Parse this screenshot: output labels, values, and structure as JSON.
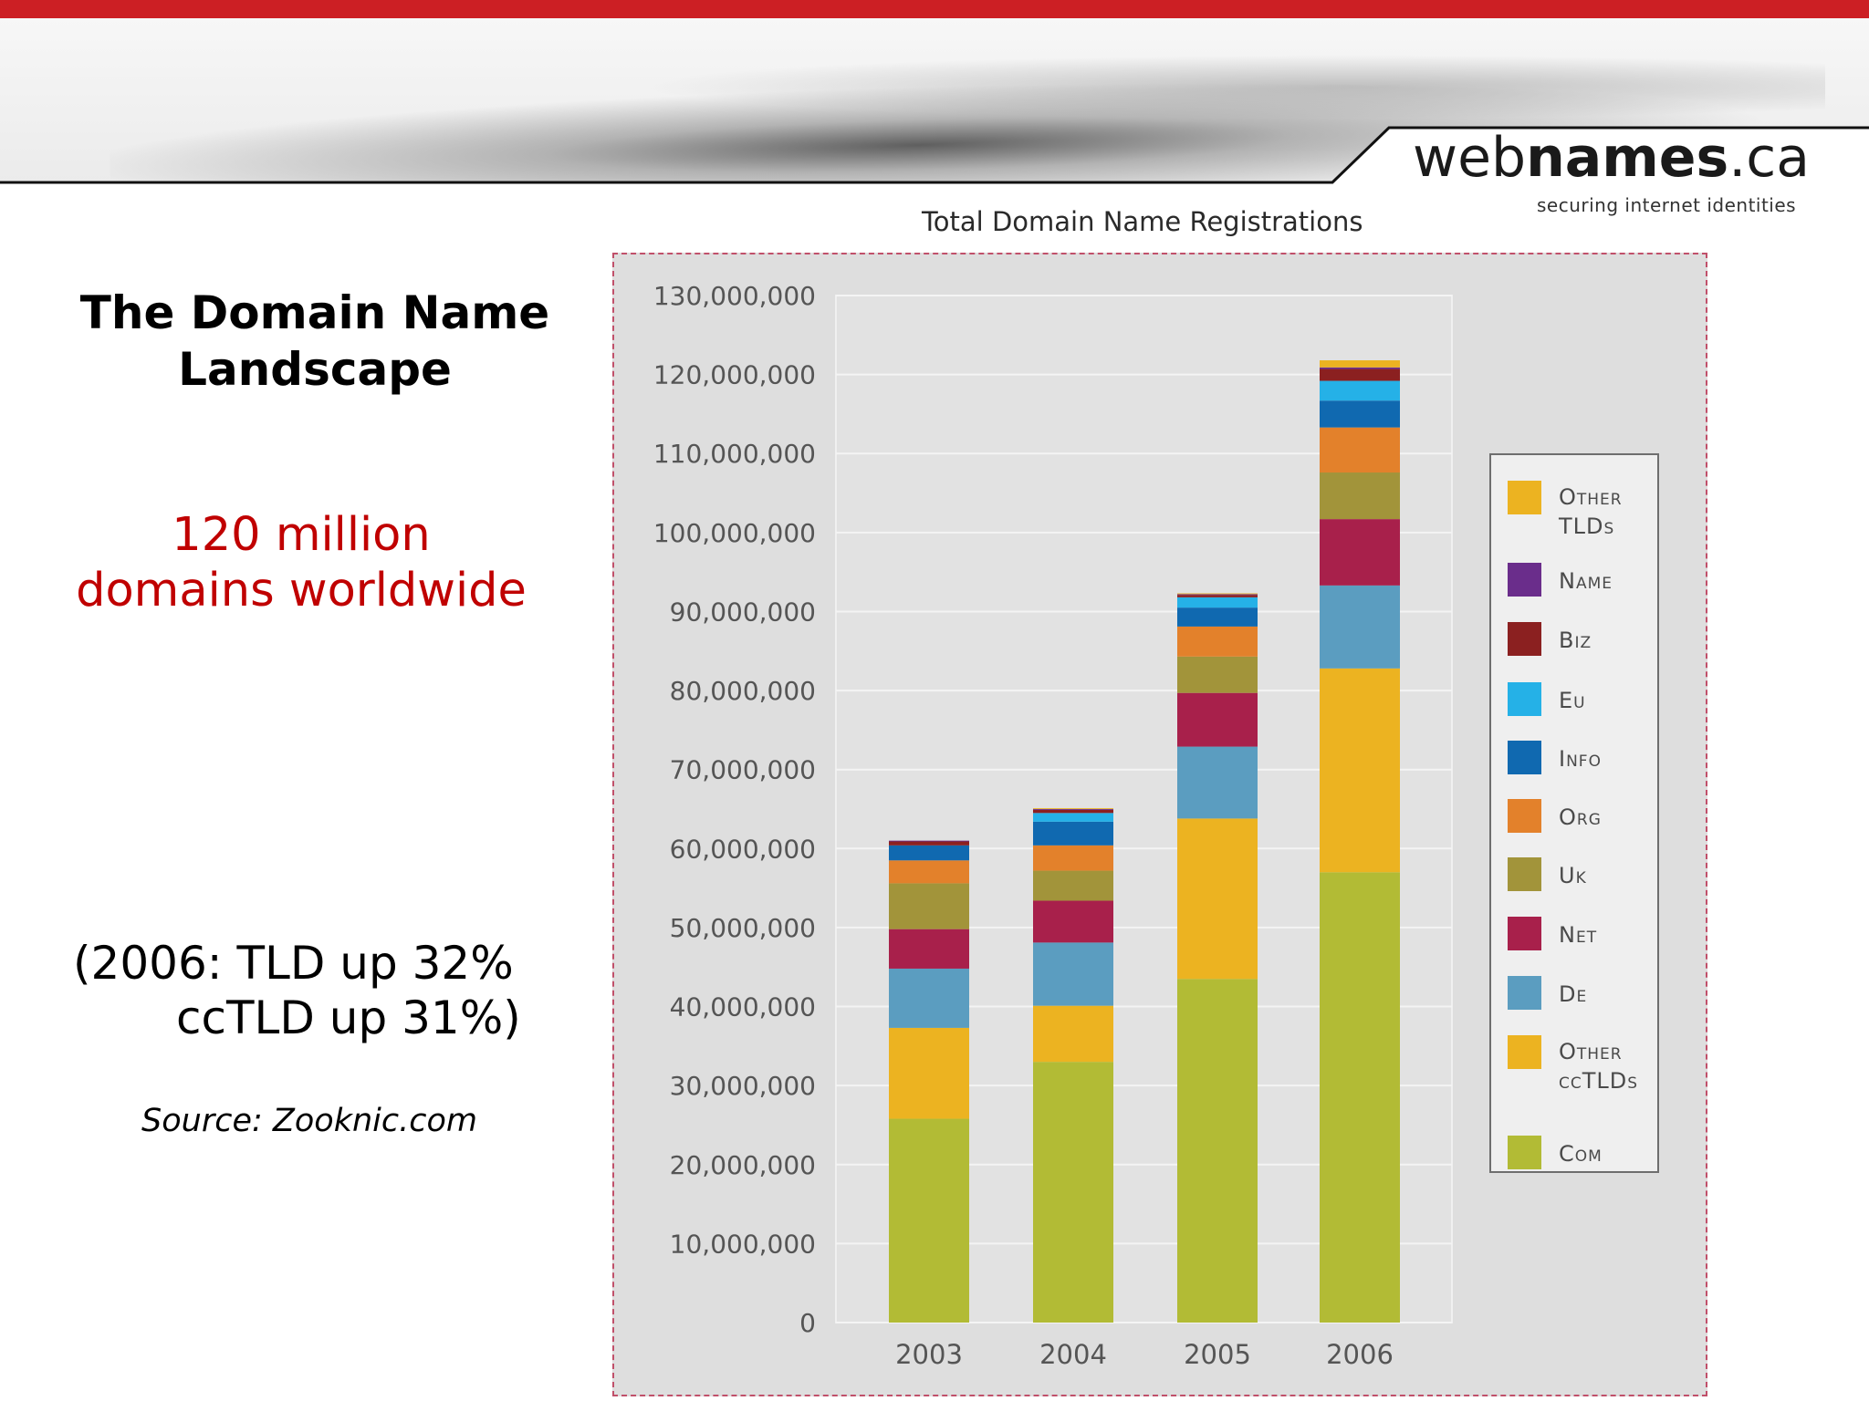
{
  "header": {
    "logo_prefix": "web",
    "logo_bold": "names",
    "logo_suffix": ".ca",
    "logo_tagline": "securing internet identities",
    "accent_color": "#cc1f24"
  },
  "slide": {
    "title_line1": "The Domain Name",
    "title_line2": "Landscape",
    "highlight_line1": "120 million",
    "highlight_line2": "domains worldwide",
    "growth_line1": "(2006: TLD up 32%",
    "growth_line2": "ccTLD up 31%)",
    "source": "Source: Zooknic.com"
  },
  "chart_data": {
    "type": "bar",
    "stacked": true,
    "title": "Total Domain Name Registrations",
    "xlabel": "",
    "ylabel": "",
    "categories": [
      "2003",
      "2004",
      "2005",
      "2006"
    ],
    "ylim": [
      0,
      130000000
    ],
    "yticks": [
      0,
      10000000,
      20000000,
      30000000,
      40000000,
      50000000,
      60000000,
      70000000,
      80000000,
      90000000,
      100000000,
      110000000,
      120000000,
      130000000
    ],
    "ytick_labels": [
      "0",
      "10,000,000",
      "20,000,000",
      "30,000,000",
      "40,000,000",
      "50,000,000",
      "60,000,000",
      "70,000,000",
      "80,000,000",
      "90,000,000",
      "100,000,000",
      "110,000,000",
      "120,000,000",
      "130,000,000"
    ],
    "grid": true,
    "legend_position": "right",
    "series": [
      {
        "name": "Com",
        "color": "#b2bb35",
        "values": [
          25800000,
          33000000,
          43500000,
          57000000
        ]
      },
      {
        "name": "Other ccTLDs",
        "color": "#ecb321",
        "values": [
          11500000,
          7100000,
          20300000,
          25800000
        ]
      },
      {
        "name": "De",
        "color": "#5b9dc0",
        "values": [
          7500000,
          8000000,
          9100000,
          10500000
        ]
      },
      {
        "name": "Net",
        "color": "#a8204b",
        "values": [
          5000000,
          5300000,
          6800000,
          8400000
        ]
      },
      {
        "name": "Uk",
        "color": "#a2943a",
        "values": [
          5800000,
          3800000,
          4600000,
          5900000
        ]
      },
      {
        "name": "Org",
        "color": "#e3812b",
        "values": [
          2900000,
          3200000,
          3800000,
          5700000
        ]
      },
      {
        "name": "Info",
        "color": "#1069b0",
        "values": [
          1900000,
          3000000,
          2400000,
          3400000
        ]
      },
      {
        "name": "Eu",
        "color": "#25b1e7",
        "values": [
          0,
          1100000,
          1300000,
          2500000
        ]
      },
      {
        "name": "Biz",
        "color": "#8b2020",
        "values": [
          500000,
          400000,
          300000,
          1500000
        ]
      },
      {
        "name": "Name",
        "color": "#6a2d8b",
        "values": [
          100000,
          100000,
          100000,
          200000
        ]
      },
      {
        "name": "Other TLDs",
        "color": "#ecb321",
        "values": [
          0,
          100000,
          100000,
          900000
        ]
      }
    ]
  }
}
